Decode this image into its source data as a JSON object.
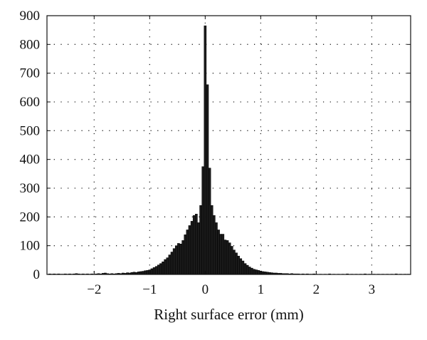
{
  "chart_data": {
    "type": "bar",
    "title": "",
    "xlabel": "Right surface error (mm)",
    "ylabel": "",
    "xlim": [
      -2.85,
      3.7
    ],
    "ylim": [
      0,
      900
    ],
    "grid": true,
    "bar_color": "#1a1a1a",
    "x_ticks": [
      {
        "value": -2,
        "label": "−2"
      },
      {
        "value": -1,
        "label": "−1"
      },
      {
        "value": 0,
        "label": "0"
      },
      {
        "value": 1,
        "label": "1"
      },
      {
        "value": 2,
        "label": "2"
      },
      {
        "value": 3,
        "label": "3"
      }
    ],
    "y_ticks": [
      {
        "value": 0,
        "label": "0"
      },
      {
        "value": 100,
        "label": "100"
      },
      {
        "value": 200,
        "label": "200"
      },
      {
        "value": 300,
        "label": "300"
      },
      {
        "value": 400,
        "label": "400"
      },
      {
        "value": 500,
        "label": "500"
      },
      {
        "value": 600,
        "label": "600"
      },
      {
        "value": 700,
        "label": "700"
      },
      {
        "value": 800,
        "label": "800"
      },
      {
        "value": 900,
        "label": "900"
      }
    ],
    "bin_width": 0.04,
    "bins": [
      {
        "x": -2.8,
        "y": 2
      },
      {
        "x": -2.76,
        "y": 1
      },
      {
        "x": -2.72,
        "y": 2
      },
      {
        "x": -2.68,
        "y": 1
      },
      {
        "x": -2.64,
        "y": 2
      },
      {
        "x": -2.6,
        "y": 1
      },
      {
        "x": -2.56,
        "y": 1
      },
      {
        "x": -2.52,
        "y": 2
      },
      {
        "x": -2.48,
        "y": 1
      },
      {
        "x": -2.44,
        "y": 2
      },
      {
        "x": -2.4,
        "y": 1
      },
      {
        "x": -2.36,
        "y": 2
      },
      {
        "x": -2.32,
        "y": 3
      },
      {
        "x": -2.28,
        "y": 2
      },
      {
        "x": -2.24,
        "y": 1
      },
      {
        "x": -2.2,
        "y": 2
      },
      {
        "x": -2.16,
        "y": 1
      },
      {
        "x": -2.12,
        "y": 2
      },
      {
        "x": -2.08,
        "y": 1
      },
      {
        "x": -2.04,
        "y": 2
      },
      {
        "x": -2.0,
        "y": 1
      },
      {
        "x": -1.96,
        "y": 2
      },
      {
        "x": -1.92,
        "y": 3
      },
      {
        "x": -1.88,
        "y": 2
      },
      {
        "x": -1.84,
        "y": 4
      },
      {
        "x": -1.8,
        "y": 5
      },
      {
        "x": -1.76,
        "y": 3
      },
      {
        "x": -1.72,
        "y": 2
      },
      {
        "x": -1.68,
        "y": 3
      },
      {
        "x": -1.64,
        "y": 2
      },
      {
        "x": -1.6,
        "y": 3
      },
      {
        "x": -1.56,
        "y": 4
      },
      {
        "x": -1.52,
        "y": 3
      },
      {
        "x": -1.48,
        "y": 5
      },
      {
        "x": -1.44,
        "y": 4
      },
      {
        "x": -1.4,
        "y": 6
      },
      {
        "x": -1.36,
        "y": 5
      },
      {
        "x": -1.32,
        "y": 7
      },
      {
        "x": -1.28,
        "y": 8
      },
      {
        "x": -1.24,
        "y": 7
      },
      {
        "x": -1.2,
        "y": 9
      },
      {
        "x": -1.16,
        "y": 10
      },
      {
        "x": -1.12,
        "y": 11
      },
      {
        "x": -1.08,
        "y": 13
      },
      {
        "x": -1.04,
        "y": 14
      },
      {
        "x": -1.0,
        "y": 16
      },
      {
        "x": -0.96,
        "y": 20
      },
      {
        "x": -0.92,
        "y": 24
      },
      {
        "x": -0.88,
        "y": 28
      },
      {
        "x": -0.84,
        "y": 33
      },
      {
        "x": -0.8,
        "y": 38
      },
      {
        "x": -0.76,
        "y": 44
      },
      {
        "x": -0.72,
        "y": 52
      },
      {
        "x": -0.68,
        "y": 58
      },
      {
        "x": -0.64,
        "y": 68
      },
      {
        "x": -0.6,
        "y": 78
      },
      {
        "x": -0.56,
        "y": 90
      },
      {
        "x": -0.52,
        "y": 100
      },
      {
        "x": -0.48,
        "y": 108
      },
      {
        "x": -0.44,
        "y": 106
      },
      {
        "x": -0.4,
        "y": 118
      },
      {
        "x": -0.36,
        "y": 138
      },
      {
        "x": -0.32,
        "y": 155
      },
      {
        "x": -0.28,
        "y": 170
      },
      {
        "x": -0.24,
        "y": 185
      },
      {
        "x": -0.2,
        "y": 205
      },
      {
        "x": -0.16,
        "y": 210
      },
      {
        "x": -0.12,
        "y": 180
      },
      {
        "x": -0.08,
        "y": 240
      },
      {
        "x": -0.04,
        "y": 375
      },
      {
        "x": 0.0,
        "y": 865
      },
      {
        "x": 0.04,
        "y": 660
      },
      {
        "x": 0.08,
        "y": 370
      },
      {
        "x": 0.12,
        "y": 240
      },
      {
        "x": 0.16,
        "y": 205
      },
      {
        "x": 0.2,
        "y": 180
      },
      {
        "x": 0.24,
        "y": 155
      },
      {
        "x": 0.28,
        "y": 140
      },
      {
        "x": 0.32,
        "y": 140
      },
      {
        "x": 0.36,
        "y": 120
      },
      {
        "x": 0.4,
        "y": 118
      },
      {
        "x": 0.44,
        "y": 110
      },
      {
        "x": 0.48,
        "y": 98
      },
      {
        "x": 0.52,
        "y": 85
      },
      {
        "x": 0.56,
        "y": 75
      },
      {
        "x": 0.6,
        "y": 64
      },
      {
        "x": 0.64,
        "y": 55
      },
      {
        "x": 0.68,
        "y": 47
      },
      {
        "x": 0.72,
        "y": 38
      },
      {
        "x": 0.76,
        "y": 32
      },
      {
        "x": 0.8,
        "y": 26
      },
      {
        "x": 0.84,
        "y": 22
      },
      {
        "x": 0.88,
        "y": 18
      },
      {
        "x": 0.92,
        "y": 16
      },
      {
        "x": 0.96,
        "y": 14
      },
      {
        "x": 1.0,
        "y": 12
      },
      {
        "x": 1.04,
        "y": 10
      },
      {
        "x": 1.08,
        "y": 9
      },
      {
        "x": 1.12,
        "y": 8
      },
      {
        "x": 1.16,
        "y": 7
      },
      {
        "x": 1.2,
        "y": 6
      },
      {
        "x": 1.24,
        "y": 5
      },
      {
        "x": 1.28,
        "y": 5
      },
      {
        "x": 1.32,
        "y": 4
      },
      {
        "x": 1.36,
        "y": 4
      },
      {
        "x": 1.4,
        "y": 3
      },
      {
        "x": 1.44,
        "y": 3
      },
      {
        "x": 1.48,
        "y": 3
      },
      {
        "x": 1.52,
        "y": 2
      },
      {
        "x": 1.56,
        "y": 3
      },
      {
        "x": 1.6,
        "y": 2
      },
      {
        "x": 1.64,
        "y": 2
      },
      {
        "x": 1.68,
        "y": 2
      },
      {
        "x": 1.72,
        "y": 1
      },
      {
        "x": 1.76,
        "y": 2
      },
      {
        "x": 1.8,
        "y": 1
      },
      {
        "x": 1.84,
        "y": 2
      },
      {
        "x": 1.88,
        "y": 1
      },
      {
        "x": 1.92,
        "y": 1
      },
      {
        "x": 1.96,
        "y": 2
      },
      {
        "x": 2.0,
        "y": 1
      },
      {
        "x": 2.08,
        "y": 1
      },
      {
        "x": 2.16,
        "y": 1
      },
      {
        "x": 2.24,
        "y": 2
      },
      {
        "x": 2.32,
        "y": 1
      },
      {
        "x": 2.4,
        "y": 1
      },
      {
        "x": 2.48,
        "y": 1
      },
      {
        "x": 2.56,
        "y": 2
      },
      {
        "x": 2.64,
        "y": 1
      },
      {
        "x": 2.72,
        "y": 1
      },
      {
        "x": 2.8,
        "y": 1
      },
      {
        "x": 2.88,
        "y": 2
      },
      {
        "x": 2.96,
        "y": 1
      },
      {
        "x": 3.04,
        "y": 1
      },
      {
        "x": 3.12,
        "y": 1
      },
      {
        "x": 3.2,
        "y": 1
      },
      {
        "x": 3.28,
        "y": 1
      },
      {
        "x": 3.36,
        "y": 1
      },
      {
        "x": 3.44,
        "y": 2
      },
      {
        "x": 3.52,
        "y": 1
      },
      {
        "x": 3.6,
        "y": 1
      },
      {
        "x": 3.66,
        "y": 1
      }
    ]
  }
}
